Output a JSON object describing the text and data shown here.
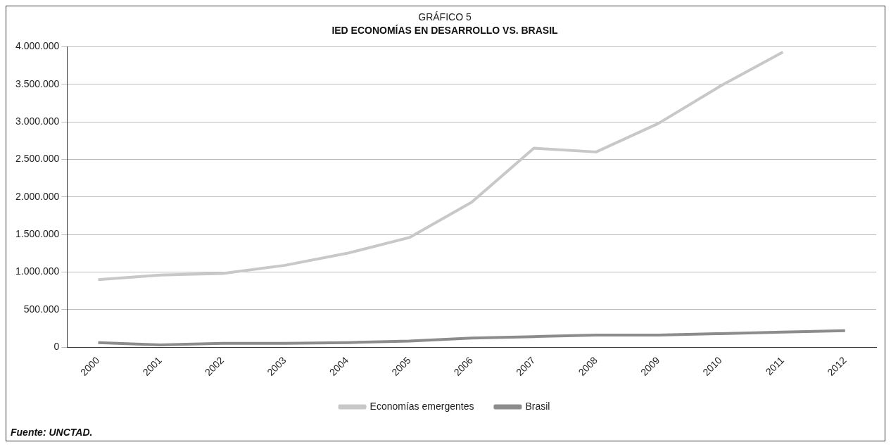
{
  "chart_data": {
    "type": "line",
    "title": "GRÁFICO 5",
    "subtitle": "IED ECONOMÍAS EN DESARROLLO VS. BRASIL",
    "categories": [
      "2000",
      "2001",
      "2002",
      "2003",
      "2004",
      "2005",
      "2006",
      "2007",
      "2008",
      "2009",
      "2010",
      "2011",
      "2012"
    ],
    "series": [
      {
        "name": "Economías emergentes",
        "color": "#c8c8c8",
        "values": [
          900000,
          960000,
          980000,
          1090000,
          1250000,
          1460000,
          1930000,
          2650000,
          2600000,
          2980000,
          3480000,
          3930000,
          null
        ]
      },
      {
        "name": "Brasil",
        "color": "#8c8c8c",
        "values": [
          60000,
          30000,
          50000,
          50000,
          60000,
          80000,
          120000,
          140000,
          160000,
          160000,
          180000,
          200000,
          220000
        ]
      }
    ],
    "ylim": [
      0,
      4000000
    ],
    "yticks": [
      {
        "value": 0,
        "label": "0"
      },
      {
        "value": 500000,
        "label": "500.000"
      },
      {
        "value": 1000000,
        "label": "1.000.000"
      },
      {
        "value": 1500000,
        "label": "1.500.000"
      },
      {
        "value": 2000000,
        "label": "2.000.000"
      },
      {
        "value": 2500000,
        "label": "2.500.000"
      },
      {
        "value": 3000000,
        "label": "3.000.000"
      },
      {
        "value": 3500000,
        "label": "3.500.000"
      },
      {
        "value": 4000000,
        "label": "4.000.000"
      }
    ],
    "grid": "y",
    "legend": "bottom",
    "marker": "none",
    "line_style": "solid",
    "annotations": [
      "Fuente: UNCTAD."
    ]
  }
}
